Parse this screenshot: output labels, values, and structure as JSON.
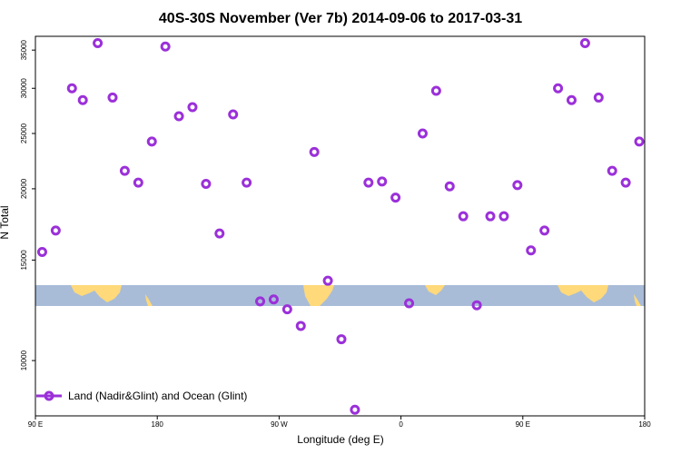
{
  "chart_data": {
    "type": "scatter",
    "title": "40S-30S November (Ver 7b)   2014-09-06 to 2017-03-31",
    "xlabel": "Longitude (deg E)",
    "ylabel": "N Total",
    "x_ticks": [
      {
        "value": 90,
        "label": "90 E"
      },
      {
        "value": 180,
        "label": "180"
      },
      {
        "value": 270,
        "label": "90 W"
      },
      {
        "value": 360,
        "label": "0"
      },
      {
        "value": 450,
        "label": "90 E"
      },
      {
        "value": 540,
        "label": "180"
      }
    ],
    "xlim": [
      90,
      540
    ],
    "y_ticks": [
      10000,
      15000,
      20000,
      25000,
      30000,
      35000
    ],
    "ylim": [
      8000,
      37000
    ],
    "y_scale": "log",
    "grid": false,
    "legend": {
      "position": "bottom-left",
      "entries": [
        "Land (Nadir&Glint) and Ocean (Glint)"
      ]
    },
    "series": [
      {
        "name": "Land (Nadir&Glint) and Ocean (Glint)",
        "color": "#9B30D9",
        "marker": "open-circle",
        "x": [
          95,
          105,
          117,
          125,
          136,
          147,
          156,
          166,
          176,
          186,
          196,
          206,
          216,
          226,
          236,
          246,
          256,
          266,
          276,
          286,
          296,
          306,
          316,
          326,
          336,
          346,
          356,
          366,
          376,
          386,
          396,
          406,
          416,
          426,
          436,
          446,
          456,
          466,
          476,
          486,
          496,
          506,
          516,
          526,
          536
        ],
        "y": [
          15500,
          16900,
          30000,
          28600,
          36000,
          28900,
          21500,
          20500,
          24200,
          35500,
          26800,
          27800,
          20400,
          16700,
          27000,
          20500,
          12700,
          12800,
          12300,
          11500,
          23200,
          13800,
          10900,
          8200,
          20500,
          20600,
          19300,
          12600,
          25000,
          29700,
          20200,
          17900,
          12500,
          17900,
          17900,
          20300,
          15600,
          16900,
          30000,
          28600,
          36000,
          28900,
          21500,
          20500,
          24200
        ]
      }
    ]
  }
}
